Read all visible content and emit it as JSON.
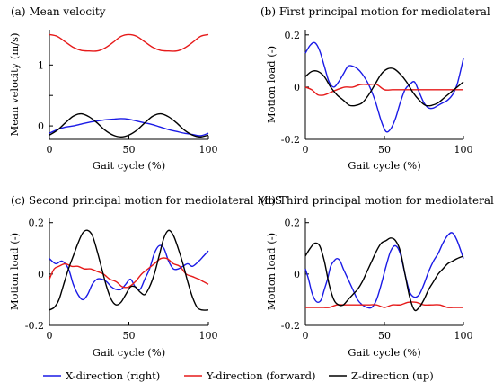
{
  "legend": [
    {
      "label": "X-direction (right)",
      "color": "#1a1ae6"
    },
    {
      "label": "Y-direction (forward)",
      "color": "#e61a1a"
    },
    {
      "label": "Z-direction (up)",
      "color": "#000000"
    }
  ],
  "chart_data": [
    {
      "type": "line",
      "title": "(a) Mean velocity",
      "xlabel": "Gait cycle (%)",
      "ylabel": "Mean velocity (m/s)",
      "xlim": [
        0,
        100
      ],
      "ylim": [
        -0.22,
        1.58
      ],
      "xticks": [
        0,
        50,
        100
      ],
      "yticks": [
        0,
        0.5,
        1
      ],
      "yticklabels": [
        "0",
        "",
        "1"
      ],
      "series": [
        {
          "color": "#1a1ae6",
          "x": [
            0,
            5,
            10,
            15,
            20,
            25,
            30,
            35,
            40,
            45,
            50,
            55,
            60,
            65,
            70,
            75,
            80,
            85,
            90,
            95,
            100
          ],
          "y": [
            -0.12,
            -0.06,
            -0.02,
            0.0,
            0.03,
            0.06,
            0.08,
            0.1,
            0.11,
            0.12,
            0.11,
            0.08,
            0.05,
            0.02,
            -0.02,
            -0.06,
            -0.09,
            -0.12,
            -0.14,
            -0.16,
            -0.12
          ]
        },
        {
          "color": "#e61a1a",
          "x": [
            0,
            5,
            10,
            15,
            20,
            25,
            30,
            35,
            40,
            45,
            50,
            55,
            60,
            65,
            70,
            75,
            80,
            85,
            90,
            95,
            100
          ],
          "y": [
            1.5,
            1.47,
            1.38,
            1.29,
            1.24,
            1.23,
            1.23,
            1.28,
            1.37,
            1.47,
            1.5,
            1.47,
            1.38,
            1.29,
            1.24,
            1.23,
            1.23,
            1.28,
            1.37,
            1.47,
            1.5
          ]
        },
        {
          "color": "#000000",
          "x": [
            0,
            5,
            10,
            15,
            20,
            25,
            30,
            35,
            40,
            45,
            50,
            55,
            60,
            65,
            70,
            75,
            80,
            85,
            90,
            95,
            100
          ],
          "y": [
            -0.15,
            -0.07,
            0.05,
            0.16,
            0.2,
            0.15,
            0.05,
            -0.07,
            -0.15,
            -0.18,
            -0.15,
            -0.07,
            0.05,
            0.16,
            0.2,
            0.15,
            0.05,
            -0.07,
            -0.15,
            -0.18,
            -0.15
          ]
        }
      ]
    },
    {
      "type": "line",
      "title": "(b) First principal motion for mediolateral MoS",
      "xlabel": "Gait cycle (%)",
      "ylabel": "Motion load (-)",
      "xlim": [
        0,
        100
      ],
      "ylim": [
        -0.2,
        0.22
      ],
      "xticks": [
        0,
        50,
        100
      ],
      "yticks": [
        -0.2,
        0,
        0.2
      ],
      "yticklabels": [
        "-0.2",
        "0",
        "0.2"
      ],
      "series": [
        {
          "color": "#1a1ae6",
          "x": [
            0,
            3,
            6,
            9,
            12,
            15,
            18,
            21,
            24,
            27,
            30,
            33,
            36,
            40,
            44,
            48,
            51,
            54,
            57,
            60,
            63,
            66,
            69,
            72,
            75,
            78,
            81,
            84,
            87,
            90,
            93,
            96,
            100
          ],
          "y": [
            0.13,
            0.16,
            0.17,
            0.14,
            0.08,
            0.02,
            0.0,
            0.02,
            0.05,
            0.08,
            0.08,
            0.07,
            0.05,
            0.01,
            -0.05,
            -0.13,
            -0.17,
            -0.16,
            -0.12,
            -0.06,
            -0.01,
            0.01,
            0.02,
            -0.02,
            -0.06,
            -0.08,
            -0.08,
            -0.07,
            -0.06,
            -0.05,
            -0.03,
            0.01,
            0.11
          ]
        },
        {
          "color": "#e61a1a",
          "x": [
            0,
            4,
            8,
            12,
            16,
            20,
            25,
            30,
            35,
            40,
            45,
            50,
            55,
            60,
            65,
            70,
            75,
            80,
            85,
            90,
            95,
            100
          ],
          "y": [
            0.0,
            -0.01,
            -0.03,
            -0.03,
            -0.02,
            -0.01,
            0.0,
            0.0,
            0.01,
            0.01,
            0.01,
            -0.01,
            -0.01,
            -0.01,
            -0.01,
            -0.01,
            -0.01,
            -0.01,
            -0.01,
            -0.01,
            -0.01,
            -0.01
          ]
        },
        {
          "color": "#000000",
          "x": [
            0,
            4,
            8,
            12,
            16,
            20,
            24,
            28,
            32,
            36,
            40,
            44,
            48,
            52,
            56,
            60,
            64,
            68,
            72,
            76,
            80,
            84,
            88,
            92,
            96,
            100
          ],
          "y": [
            0.04,
            0.06,
            0.06,
            0.04,
            0.0,
            -0.03,
            -0.05,
            -0.07,
            -0.07,
            -0.06,
            -0.03,
            0.01,
            0.05,
            0.07,
            0.07,
            0.05,
            0.02,
            -0.02,
            -0.05,
            -0.07,
            -0.07,
            -0.06,
            -0.04,
            -0.02,
            0.0,
            0.02
          ]
        }
      ]
    },
    {
      "type": "line",
      "title": "(c) Second principal motion for mediolateral MoS",
      "xlabel": "Gait cycle (%)",
      "ylabel": "Motion load (-)",
      "xlim": [
        0,
        100
      ],
      "ylim": [
        -0.2,
        0.22
      ],
      "xticks": [
        0,
        50,
        100
      ],
      "yticks": [
        -0.2,
        0,
        0.2
      ],
      "yticklabels": [
        "-0.2",
        "0",
        "0.2"
      ],
      "series": [
        {
          "color": "#1a1ae6",
          "x": [
            0,
            4,
            8,
            12,
            15,
            18,
            21,
            24,
            27,
            30,
            33,
            36,
            39,
            42,
            45,
            48,
            51,
            54,
            57,
            60,
            63,
            66,
            69,
            72,
            75,
            78,
            81,
            84,
            87,
            90,
            94,
            97,
            100
          ],
          "y": [
            0.06,
            0.04,
            0.05,
            0.02,
            -0.04,
            -0.08,
            -0.1,
            -0.08,
            -0.04,
            -0.02,
            -0.02,
            -0.03,
            -0.05,
            -0.06,
            -0.06,
            -0.04,
            -0.02,
            -0.05,
            -0.06,
            -0.02,
            0.02,
            0.08,
            0.11,
            0.1,
            0.05,
            0.02,
            0.02,
            0.03,
            0.04,
            0.03,
            0.05,
            0.07,
            0.09
          ]
        },
        {
          "color": "#e61a1a",
          "x": [
            0,
            3,
            6,
            10,
            14,
            18,
            22,
            26,
            30,
            34,
            38,
            42,
            46,
            50,
            54,
            58,
            62,
            66,
            70,
            74,
            78,
            82,
            86,
            90,
            94,
            97,
            100
          ],
          "y": [
            -0.02,
            0.02,
            0.03,
            0.04,
            0.03,
            0.03,
            0.02,
            0.02,
            0.01,
            0.0,
            -0.02,
            -0.03,
            -0.05,
            -0.05,
            -0.03,
            0.0,
            0.02,
            0.04,
            0.06,
            0.06,
            0.04,
            0.03,
            0.0,
            -0.01,
            -0.02,
            -0.03,
            -0.04
          ]
        },
        {
          "color": "#000000",
          "x": [
            0,
            3,
            6,
            9,
            12,
            15,
            18,
            21,
            24,
            27,
            30,
            33,
            36,
            39,
            42,
            45,
            48,
            51,
            54,
            57,
            60,
            63,
            66,
            69,
            72,
            75,
            78,
            81,
            84,
            87,
            90,
            93,
            96,
            100
          ],
          "y": [
            -0.14,
            -0.13,
            -0.1,
            -0.04,
            0.02,
            0.07,
            0.12,
            0.16,
            0.17,
            0.15,
            0.09,
            0.02,
            -0.05,
            -0.1,
            -0.12,
            -0.11,
            -0.08,
            -0.05,
            -0.05,
            -0.07,
            -0.08,
            -0.05,
            0.0,
            0.07,
            0.14,
            0.17,
            0.15,
            0.1,
            0.04,
            -0.03,
            -0.09,
            -0.13,
            -0.14,
            -0.14
          ]
        }
      ]
    },
    {
      "type": "line",
      "title": "(d) Third principal motion for mediolateral MoS",
      "xlabel": "Gait cycle (%)",
      "ylabel": "Motion load (-)",
      "xlim": [
        0,
        100
      ],
      "ylim": [
        -0.2,
        0.22
      ],
      "xticks": [
        0,
        50,
        100
      ],
      "yticks": [
        -0.2,
        0,
        0.2
      ],
      "yticklabels": [
        "-0.2",
        "0",
        "0.2"
      ],
      "series": [
        {
          "color": "#1a1ae6",
          "x": [
            0,
            2,
            4,
            6,
            8,
            10,
            12,
            14,
            16,
            18,
            20,
            22,
            24,
            27,
            30,
            33,
            36,
            39,
            42,
            45,
            48,
            51,
            54,
            57,
            60,
            63,
            66,
            69,
            72,
            75,
            78,
            81,
            84,
            87,
            90,
            93,
            96,
            100
          ],
          "y": [
            0.02,
            -0.02,
            -0.07,
            -0.1,
            -0.11,
            -0.1,
            -0.06,
            -0.02,
            0.03,
            0.05,
            0.06,
            0.05,
            0.02,
            -0.02,
            -0.06,
            -0.1,
            -0.12,
            -0.13,
            -0.13,
            -0.1,
            -0.04,
            0.03,
            0.09,
            0.11,
            0.08,
            0.0,
            -0.07,
            -0.09,
            -0.08,
            -0.04,
            0.01,
            0.05,
            0.08,
            0.12,
            0.15,
            0.16,
            0.13,
            0.06
          ]
        },
        {
          "color": "#e61a1a",
          "x": [
            0,
            5,
            10,
            15,
            20,
            25,
            30,
            35,
            40,
            45,
            50,
            55,
            60,
            65,
            70,
            75,
            80,
            85,
            90,
            95,
            100
          ],
          "y": [
            -0.13,
            -0.13,
            -0.13,
            -0.13,
            -0.12,
            -0.12,
            -0.12,
            -0.12,
            -0.12,
            -0.12,
            -0.13,
            -0.12,
            -0.12,
            -0.11,
            -0.11,
            -0.12,
            -0.12,
            -0.12,
            -0.13,
            -0.13,
            -0.13
          ]
        },
        {
          "color": "#000000",
          "x": [
            0,
            3,
            6,
            9,
            12,
            15,
            18,
            21,
            24,
            27,
            30,
            33,
            36,
            39,
            42,
            45,
            48,
            51,
            54,
            57,
            60,
            63,
            66,
            69,
            72,
            75,
            78,
            81,
            84,
            87,
            90,
            93,
            96,
            100
          ],
          "y": [
            0.07,
            0.1,
            0.12,
            0.11,
            0.05,
            -0.04,
            -0.1,
            -0.12,
            -0.12,
            -0.1,
            -0.08,
            -0.06,
            -0.03,
            0.01,
            0.05,
            0.09,
            0.12,
            0.13,
            0.14,
            0.13,
            0.09,
            0.0,
            -0.09,
            -0.14,
            -0.13,
            -0.1,
            -0.06,
            -0.03,
            0.0,
            0.02,
            0.04,
            0.05,
            0.06,
            0.07
          ]
        }
      ]
    }
  ]
}
